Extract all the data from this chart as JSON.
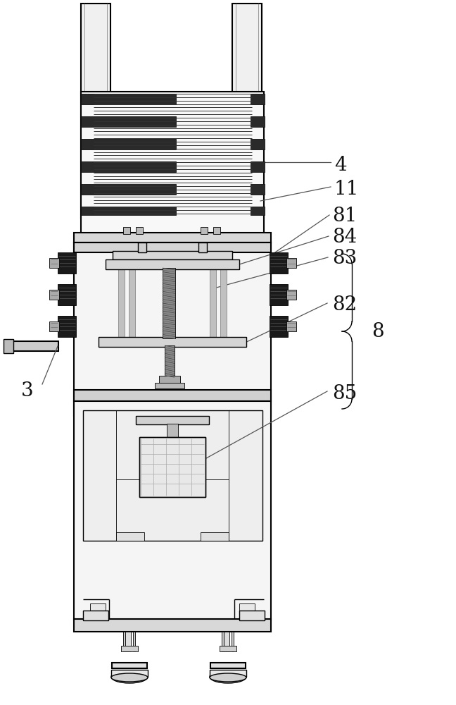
{
  "bg_color": "#ffffff",
  "line_color": "#000000",
  "figsize": [
    6.48,
    10.0
  ],
  "dpi": 100,
  "label_fontsize": 20
}
